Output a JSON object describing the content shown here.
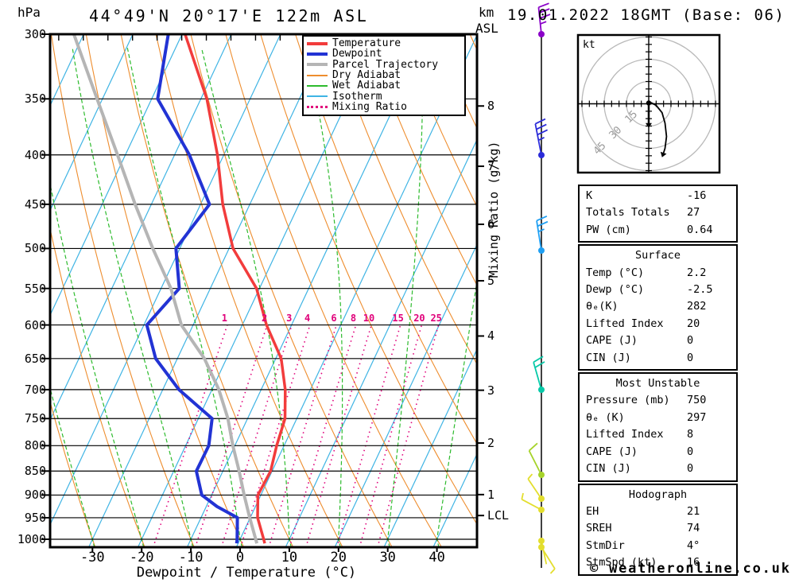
{
  "header": {
    "pressure_unit": "hPa",
    "title": "44°49'N 20°17'E 122m ASL",
    "altitude_unit": "km",
    "altitude_ref": "ASL",
    "date": "19.01.2022 18GMT (Base: 06)"
  },
  "footer": "© weatheronline.co.uk",
  "colors": {
    "temperature": "#f23c3c",
    "dewpoint": "#2233d4",
    "parcel": "#b5b5b5",
    "dry_adiabat": "#ee8d2e",
    "wet_adiabat": "#2dbb2d",
    "isotherm": "#3fb4e4",
    "mixing_ratio": "#e0007a",
    "grid": "#000000",
    "hodo_ring": "#b9b9b9"
  },
  "legend": [
    {
      "label": "Temperature",
      "color_key": "temperature",
      "thickness": 4,
      "style": "solid"
    },
    {
      "label": "Dewpoint",
      "color_key": "dewpoint",
      "thickness": 4,
      "style": "solid"
    },
    {
      "label": "Parcel Trajectory",
      "color_key": "parcel",
      "thickness": 4,
      "style": "solid"
    },
    {
      "label": "Dry Adiabat",
      "color_key": "dry_adiabat",
      "thickness": 2,
      "style": "solid"
    },
    {
      "label": "Wet Adiabat",
      "color_key": "wet_adiabat",
      "thickness": 2,
      "style": "solid"
    },
    {
      "label": "Isotherm",
      "color_key": "isotherm",
      "thickness": 2,
      "style": "solid"
    },
    {
      "label": "Mixing Ratio",
      "color_key": "mixing_ratio",
      "thickness": 3,
      "style": "dotted"
    }
  ],
  "axes": {
    "pressure_ticks": [
      300,
      350,
      400,
      450,
      500,
      550,
      600,
      650,
      700,
      750,
      800,
      850,
      900,
      950,
      1000
    ],
    "temp_ticks": [
      -30,
      -20,
      -10,
      0,
      10,
      20,
      30,
      40
    ],
    "temp_axis_label": "Dewpoint / Temperature (°C)",
    "km_ticks": [
      {
        "label": "8",
        "p": 356
      },
      {
        "label": "7",
        "p": 411
      },
      {
        "label": "6",
        "p": 472
      },
      {
        "label": "5",
        "p": 540
      },
      {
        "label": "4",
        "p": 616
      },
      {
        "label": "3",
        "p": 701
      },
      {
        "label": "2",
        "p": 795
      },
      {
        "label": "1",
        "p": 899
      },
      {
        "label": "LCL",
        "p": 945
      }
    ],
    "mixing_ratio_axis_label": "Mixing Ratio (g/kg)"
  },
  "chart_data": {
    "type": "skewt_log_p",
    "title": "44°49'N 20°17'E 122m ASL",
    "pressure_range_hpa": [
      300,
      1000
    ],
    "temp_range_at_surface_c": [
      -38,
      48
    ],
    "background": {
      "isotherms_c": {
        "from": -90,
        "to": 40,
        "step": 10
      },
      "dry_adiabats_c": {
        "from": -30,
        "to": 160,
        "step": 10
      },
      "wet_adiabats_c": {
        "from": -30,
        "to": 40,
        "step": 10
      },
      "mixing_ratio_gkg": [
        1,
        2,
        3,
        4,
        6,
        8,
        10,
        15,
        20,
        25
      ]
    },
    "series": [
      {
        "name": "temperature",
        "color_key": "temperature",
        "width": 3.5,
        "points": [
          [
            1010,
            5.4
          ],
          [
            1000,
            4.8
          ],
          [
            950,
            1.5
          ],
          [
            900,
            -0.6
          ],
          [
            850,
            -0.3
          ],
          [
            800,
            -1.5
          ],
          [
            750,
            -2.4
          ],
          [
            700,
            -5.1
          ],
          [
            650,
            -8.9
          ],
          [
            600,
            -15.1
          ],
          [
            550,
            -20.6
          ],
          [
            500,
            -29.2
          ],
          [
            450,
            -35.5
          ],
          [
            400,
            -41.3
          ],
          [
            350,
            -48.8
          ],
          [
            300,
            -59.4
          ]
        ]
      },
      {
        "name": "dewpoint",
        "color_key": "dewpoint",
        "width": 4,
        "points": [
          [
            1010,
            -0.3
          ],
          [
            1000,
            -0.6
          ],
          [
            950,
            -2.6
          ],
          [
            925,
            -7.8
          ],
          [
            900,
            -12.0
          ],
          [
            850,
            -15.4
          ],
          [
            800,
            -15.3
          ],
          [
            750,
            -17.2
          ],
          [
            700,
            -26.7
          ],
          [
            650,
            -34.4
          ],
          [
            600,
            -39.4
          ],
          [
            550,
            -36.3
          ],
          [
            500,
            -40.8
          ],
          [
            450,
            -38.2
          ],
          [
            400,
            -47.0
          ],
          [
            350,
            -58.8
          ],
          [
            300,
            -62.8
          ]
        ]
      },
      {
        "name": "parcel_trajectory",
        "color_key": "parcel",
        "width": 4,
        "points": [
          [
            1010,
            3.8
          ],
          [
            950,
            -0.1
          ],
          [
            900,
            -3.4
          ],
          [
            850,
            -6.7
          ],
          [
            800,
            -10.4
          ],
          [
            750,
            -14.0
          ],
          [
            700,
            -18.6
          ],
          [
            650,
            -24.5
          ],
          [
            600,
            -32.4
          ],
          [
            550,
            -38.0
          ],
          [
            500,
            -45.5
          ],
          [
            450,
            -53.3
          ],
          [
            400,
            -61.6
          ],
          [
            350,
            -71.1
          ],
          [
            300,
            -82.0
          ]
        ]
      }
    ]
  },
  "hodograph": {
    "unit_label": "kt",
    "rings_kt": [
      15,
      30,
      45
    ],
    "ring_labels": [
      "15",
      "30",
      "45"
    ],
    "tick_step_kt": 5,
    "trace_kt": [
      [
        1,
        -1
      ],
      [
        5,
        1
      ],
      [
        9,
        6
      ],
      [
        11,
        13
      ],
      [
        12,
        22
      ],
      [
        11,
        30
      ],
      [
        10,
        33
      ]
    ],
    "storm_vector_kt": [
      [
        0,
        1
      ],
      [
        0,
        13
      ]
    ]
  },
  "wind_barbs": [
    {
      "y": 43,
      "color": "#8a00c8",
      "stem_angle": -6,
      "len": 34,
      "feathers": [
        1,
        1,
        1,
        0.5
      ]
    },
    {
      "y": 195,
      "color": "#2b2bd8",
      "stem_angle": -11,
      "len": 40,
      "feathers": [
        1,
        1,
        1,
        0.5
      ]
    },
    {
      "y": 315,
      "color": "#1f9ff2",
      "stem_angle": -9,
      "len": 38,
      "feathers": [
        1,
        1,
        0.5
      ]
    },
    {
      "y": 490,
      "color": "#08c9a8",
      "stem_angle": -16,
      "len": 36,
      "feathers": [
        1,
        1
      ]
    },
    {
      "y": 597,
      "color": "#a6d32a",
      "stem_angle": -27,
      "len": 34,
      "feathers": [
        1
      ]
    },
    {
      "y": 627,
      "color": "#e3de2e",
      "stem_angle": -34,
      "len": 30,
      "feathers": [
        0.5
      ]
    },
    {
      "y": 641,
      "color": "#e3de2e",
      "stem_angle": -62,
      "len": 28,
      "feathers": [
        0.5
      ]
    },
    {
      "y": 680,
      "color": "#e3de2e",
      "stem_angle": 168,
      "len": 30,
      "feathers": []
    },
    {
      "y": 688,
      "color": "#e3de2e",
      "stem_angle": 148,
      "len": 32,
      "feathers": [
        0.5
      ]
    }
  ],
  "tables": [
    {
      "title": "",
      "rows": [
        {
          "label": "K",
          "value": "-16"
        },
        {
          "label": "Totals Totals",
          "value": "27"
        },
        {
          "label": "PW (cm)",
          "value": "0.64"
        }
      ]
    },
    {
      "title": "Surface",
      "rows": [
        {
          "label": "Temp (°C)",
          "value": "2.2"
        },
        {
          "label": "Dewp (°C)",
          "value": "-2.5"
        },
        {
          "label": "θₑ(K)",
          "value": "282"
        },
        {
          "label": "Lifted Index",
          "value": "20"
        },
        {
          "label": "CAPE (J)",
          "value": "0"
        },
        {
          "label": "CIN (J)",
          "value": "0"
        }
      ]
    },
    {
      "title": "Most Unstable",
      "rows": [
        {
          "label": "Pressure (mb)",
          "value": "750"
        },
        {
          "label": "θₑ (K)",
          "value": "297"
        },
        {
          "label": "Lifted Index",
          "value": "8"
        },
        {
          "label": "CAPE (J)",
          "value": "0"
        },
        {
          "label": "CIN (J)",
          "value": "0"
        }
      ]
    },
    {
      "title": "Hodograph",
      "rows": [
        {
          "label": "EH",
          "value": "21"
        },
        {
          "label": "SREH",
          "value": "74"
        },
        {
          "label": "StmDir",
          "value": "4°"
        },
        {
          "label": "StmSpd (kt)",
          "value": "16"
        }
      ]
    }
  ]
}
